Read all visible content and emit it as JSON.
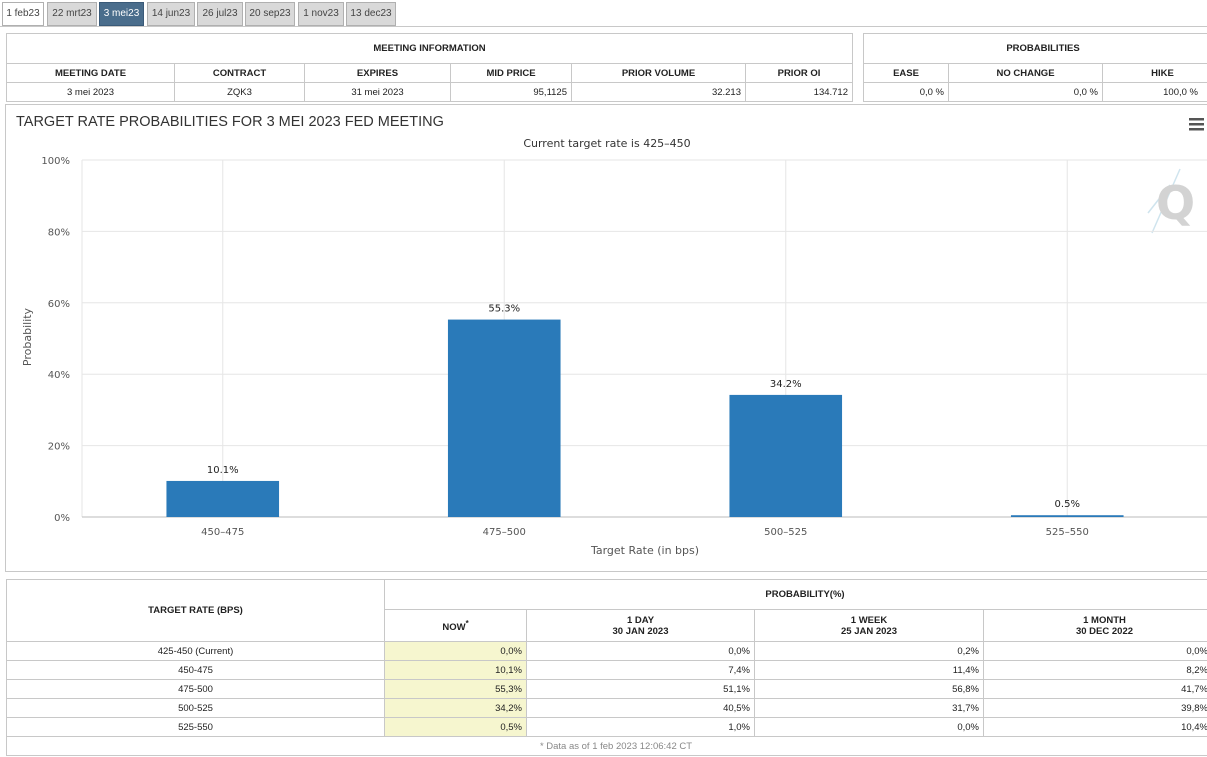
{
  "tabs": [
    "1 feb23",
    "22 mrt23",
    "3 mei23",
    "14 jun23",
    "26 jul23",
    "20 sep23",
    "1 nov23",
    "13 dec23"
  ],
  "active_tab_index": 2,
  "meeting_info": {
    "title": "MEETING INFORMATION",
    "headers": [
      "MEETING DATE",
      "CONTRACT",
      "EXPIRES",
      "MID PRICE",
      "PRIOR VOLUME",
      "PRIOR OI"
    ],
    "values": [
      "3 mei 2023",
      "ZQK3",
      "31 mei 2023",
      "95,1125",
      "32.213",
      "134.712"
    ]
  },
  "probabilities": {
    "title": "PROBABILITIES",
    "headers": [
      "EASE",
      "NO CHANGE",
      "HIKE"
    ],
    "values": [
      "0,0 %",
      "0,0 %",
      "100,0 %"
    ]
  },
  "chart_data": {
    "type": "bar",
    "title": "TARGET RATE PROBABILITIES FOR 3 MEI 2023 FED MEETING",
    "subtitle": "Current target rate is 425–450",
    "xlabel": "Target Rate (in bps)",
    "ylabel": "Probability",
    "categories": [
      "450–475",
      "475–500",
      "500–525",
      "525–550"
    ],
    "values": [
      10.1,
      55.3,
      34.2,
      0.5
    ],
    "data_labels": [
      "10.1%",
      "55.3%",
      "34.2%",
      "0.5%"
    ],
    "ylim": [
      0,
      100
    ],
    "yticks": [
      "0%",
      "20%",
      "40%",
      "60%",
      "80%",
      "100%"
    ],
    "bar_color": "#2a7ab9",
    "grid": true,
    "menu_icon": "hamburger-menu-icon",
    "watermark_icon": "quikstrike-q-logo-icon"
  },
  "rate_table": {
    "row_header": "TARGET RATE (BPS)",
    "group_header": "PROBABILITY(%)",
    "columns": [
      {
        "line1": "NOW",
        "line2": ""
      },
      {
        "line1": "1 DAY",
        "line2": "30 JAN 2023"
      },
      {
        "line1": "1 WEEK",
        "line2": "25 JAN 2023"
      },
      {
        "line1": "1 MONTH",
        "line2": "30 DEC 2022"
      }
    ],
    "now_marker": "*",
    "rows": [
      {
        "rate": "425-450 (Current)",
        "vals": [
          "0,0%",
          "0,0%",
          "0,2%",
          "0,0%"
        ]
      },
      {
        "rate": "450-475",
        "vals": [
          "10,1%",
          "7,4%",
          "11,4%",
          "8,2%"
        ]
      },
      {
        "rate": "475-500",
        "vals": [
          "55,3%",
          "51,1%",
          "56,8%",
          "41,7%"
        ]
      },
      {
        "rate": "500-525",
        "vals": [
          "34,2%",
          "40,5%",
          "31,7%",
          "39,8%"
        ]
      },
      {
        "rate": "525-550",
        "vals": [
          "0,5%",
          "1,0%",
          "0,0%",
          "10,4%"
        ]
      }
    ],
    "footnote": "* Data as of 1 feb 2023 12:06:42 CT"
  }
}
